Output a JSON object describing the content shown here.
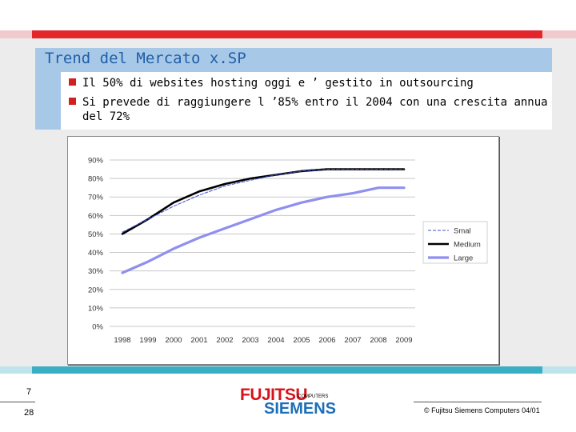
{
  "slide": {
    "title": "Trend del Mercato x.SP",
    "bullets": [
      "Il 50% di websites hosting oggi e ’ gestito in outsourcing",
      "Si prevede di raggiungere l ’85% entro il 2004 con una crescita annua"
    ],
    "bullet_continuation": "del 72%",
    "page_top": "7",
    "page_bottom": "28",
    "copyright": "© Fujitsu Siemens Computers 04/01"
  },
  "logo": {
    "fujitsu": "FUJITSU",
    "computers": "COMPUTERS",
    "siemens": "SIEMENS"
  },
  "colors": {
    "accent_red": "#e2262b",
    "accent_teal": "#3aaec2",
    "title_blue": "#1f5fa8",
    "series_medium": "#000000",
    "series_large": "#8f8ff0",
    "series_small": "#3b4fd6"
  },
  "chart_data": {
    "type": "line",
    "x": [
      "1998",
      "1999",
      "2000",
      "2001",
      "2002",
      "2003",
      "2004",
      "2005",
      "2006",
      "2007",
      "2008",
      "2009"
    ],
    "ylim": [
      0,
      90
    ],
    "yticks": [
      "0%",
      "10%",
      "20%",
      "30%",
      "40%",
      "50%",
      "60%",
      "70%",
      "80%",
      "90%"
    ],
    "grid": true,
    "legend": "right",
    "series": [
      {
        "name": "Smal",
        "values": [
          51,
          58,
          65,
          71,
          76,
          79,
          82,
          84,
          85,
          85,
          85,
          85
        ],
        "style": "dashed-thin"
      },
      {
        "name": "Medium",
        "values": [
          50,
          58,
          67,
          73,
          77,
          80,
          82,
          84,
          85,
          85,
          85,
          85
        ],
        "style": "solid-thick"
      },
      {
        "name": "Large",
        "values": [
          29,
          35,
          42,
          48,
          53,
          58,
          63,
          67,
          70,
          72,
          75,
          75
        ],
        "style": "solid-thick"
      }
    ]
  }
}
